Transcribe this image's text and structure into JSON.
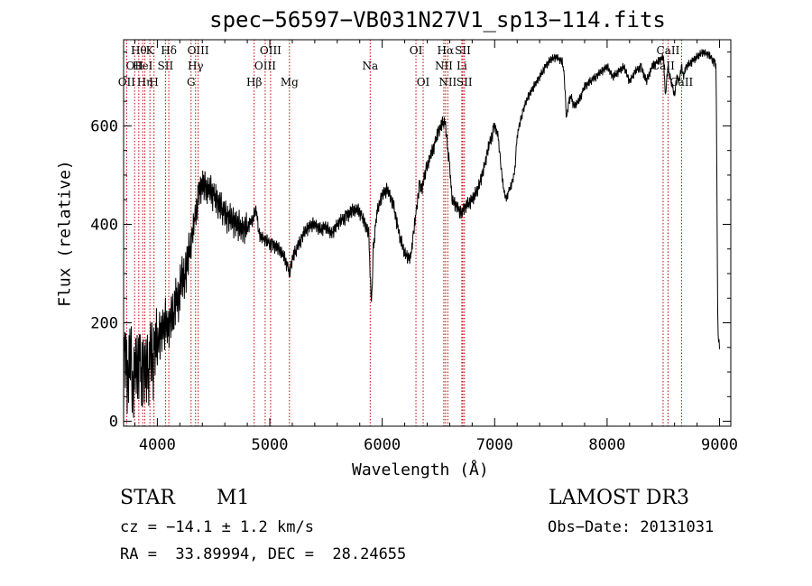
{
  "chart_data": {
    "type": "line",
    "title": "spec−56597−VB031N27V1_sp13−114.fits",
    "xlabel": "Wavelength (Å)",
    "ylabel": "Flux (relative)",
    "xlim": [
      3700,
      9100
    ],
    "ylim": [
      -10,
      775
    ],
    "xticks": [
      4000,
      5000,
      6000,
      7000,
      8000,
      9000
    ],
    "yticks": [
      0,
      200,
      400,
      600
    ],
    "grid": false,
    "line_color": "#000000",
    "marker_color": "#c00000",
    "series": [
      {
        "x": [
          3700,
          3720,
          3740,
          3760,
          3780,
          3800,
          3820,
          3840,
          3860,
          3880,
          3900,
          3920,
          3940,
          3960,
          3980,
          4000,
          4020,
          4040,
          4060,
          4080,
          4100,
          4120,
          4140,
          4160,
          4180,
          4200,
          4220,
          4240,
          4260,
          4280,
          4300,
          4320,
          4340,
          4360,
          4380,
          4400,
          4450,
          4500,
          4550,
          4600,
          4650,
          4700,
          4750,
          4800,
          4850,
          4861,
          4880,
          4900,
          4920,
          4950,
          5000,
          5050,
          5100,
          5150,
          5175,
          5200,
          5250,
          5300,
          5350,
          5400,
          5450,
          5500,
          5550,
          5600,
          5650,
          5700,
          5750,
          5800,
          5850,
          5880,
          5893,
          5905,
          5920,
          5950,
          6000,
          6050,
          6100,
          6150,
          6200,
          6250,
          6300,
          6330,
          6350,
          6400,
          6450,
          6500,
          6550,
          6563,
          6580,
          6600,
          6620,
          6650,
          6680,
          6700,
          6720,
          6750,
          6800,
          6850,
          6900,
          6950,
          7000,
          7030,
          7050,
          7080,
          7100,
          7130,
          7150,
          7180,
          7200,
          7250,
          7300,
          7350,
          7400,
          7450,
          7500,
          7550,
          7600,
          7620,
          7640,
          7660,
          7680,
          7700,
          7750,
          7800,
          7850,
          7900,
          7950,
          8000,
          8050,
          8100,
          8150,
          8200,
          8250,
          8300,
          8350,
          8400,
          8450,
          8500,
          8520,
          8540,
          8560,
          8580,
          8600,
          8620,
          8640,
          8660,
          8680,
          8700,
          8750,
          8800,
          8850,
          8900,
          8950,
          8970,
          8985,
          9000
        ],
        "y": [
          90,
          130,
          70,
          150,
          60,
          110,
          90,
          140,
          80,
          120,
          100,
          95,
          140,
          120,
          160,
          145,
          175,
          180,
          190,
          200,
          185,
          220,
          210,
          250,
          240,
          260,
          300,
          280,
          320,
          340,
          360,
          390,
          420,
          450,
          470,
          480,
          470,
          460,
          440,
          420,
          410,
          400,
          390,
          395,
          410,
          420,
          430,
          385,
          375,
          370,
          360,
          355,
          345,
          320,
          300,
          330,
          355,
          380,
          395,
          400,
          390,
          395,
          380,
          400,
          410,
          420,
          430,
          425,
          400,
          380,
          300,
          230,
          350,
          420,
          460,
          470,
          440,
          380,
          340,
          330,
          420,
          480,
          470,
          520,
          550,
          590,
          610,
          600,
          560,
          520,
          450,
          440,
          430,
          420,
          430,
          440,
          450,
          470,
          510,
          560,
          600,
          580,
          530,
          470,
          450,
          470,
          480,
          510,
          580,
          630,
          660,
          680,
          700,
          720,
          735,
          740,
          730,
          700,
          610,
          650,
          660,
          640,
          650,
          680,
          690,
          700,
          710,
          720,
          700,
          710,
          720,
          690,
          710,
          720,
          690,
          720,
          730,
          740,
          660,
          720,
          700,
          680,
          660,
          700,
          690,
          720,
          700,
          720,
          730,
          740,
          750,
          745,
          730,
          720,
          180,
          150
        ],
        "samples": [
          -14,
          12,
          6,
          11,
          -9,
          8,
          -4,
          10,
          -13,
          7,
          3,
          -8,
          12,
          -5,
          9,
          -11,
          4,
          13,
          -2,
          -10,
          7,
          1,
          -12,
          10,
          -6,
          5,
          -3,
          11,
          -7,
          2,
          14,
          -9,
          0,
          8,
          -14,
          6,
          -1,
          10,
          -4,
          3,
          -8,
          12,
          -11,
          5,
          9,
          -2,
          -13,
          7,
          1,
          -6,
          11,
          -10,
          4,
          13,
          -5,
          2,
          -12,
          8,
          -3,
          6,
          10,
          -9,
          -1,
          12,
          -7,
          3,
          -14,
          9,
          0,
          5,
          -11,
          7,
          -4,
          13,
          -2,
          -8,
          10,
          1,
          -6,
          4,
          12,
          -13,
          6,
          -3,
          9,
          -10,
          2,
          11,
          -5,
          -1,
          8,
          -12,
          3,
          14,
          -7,
          0,
          7,
          -9,
          5,
          -4,
          10,
          -11,
          2,
          6,
          -2,
          -13,
          9,
          3,
          -8,
          12,
          -6,
          1,
          -10,
          8,
          4,
          -14,
          11,
          -3,
          7,
          -5,
          2,
          10,
          -12,
          0,
          6,
          -9,
          13,
          -1,
          -7,
          4,
          9,
          -11,
          5,
          -4,
          12,
          -8,
          3,
          -2,
          10,
          -13,
          1,
          8,
          -6,
          6,
          -10,
          11,
          -3,
          2,
          -5,
          7,
          -12,
          4,
          9,
          0,
          -9,
          13,
          -7,
          5,
          -1,
          10,
          -4,
          -11,
          8,
          3
        ],
        "noise_scale": [
          85,
          55,
          35,
          16,
          10
        ]
      }
    ],
    "lines": [
      {
        "wave": 3727,
        "label": "OII",
        "row": 2
      },
      {
        "wave": 3798,
        "label": "OII",
        "row": 1
      },
      {
        "wave": 3835,
        "label": "Hθ",
        "row": 0
      },
      {
        "wave": 3870,
        "label": "HeI",
        "row": 1
      },
      {
        "wave": 3889,
        "label": "Hη",
        "row": 2
      },
      {
        "wave": 3934,
        "label": "K",
        "row": 0
      },
      {
        "wave": 3970,
        "label": "H",
        "row": 2
      },
      {
        "wave": 4072,
        "label": "SII",
        "row": 1
      },
      {
        "wave": 4102,
        "label": "Hδ",
        "row": 0
      },
      {
        "wave": 4300,
        "label": "G",
        "row": 2
      },
      {
        "wave": 4340,
        "label": "Hγ",
        "row": 1
      },
      {
        "wave": 4363,
        "label": "OIII",
        "row": 0
      },
      {
        "wave": 4861,
        "label": "Hβ",
        "row": 2
      },
      {
        "wave": 4959,
        "label": "OIII",
        "row": 1
      },
      {
        "wave": 5007,
        "label": "OIII",
        "row": 0
      },
      {
        "wave": 5175,
        "label": "Mg",
        "row": 2
      },
      {
        "wave": 5893,
        "label": "Na",
        "row": 1
      },
      {
        "wave": 6300,
        "label": "OI",
        "row": 0
      },
      {
        "wave": 6364,
        "label": "OI",
        "row": 2
      },
      {
        "wave": 6548,
        "label": "NII",
        "row": 1
      },
      {
        "wave": 6563,
        "label": "Hα",
        "row": 0
      },
      {
        "wave": 6583,
        "label": "NII",
        "row": 2
      },
      {
        "wave": 6708,
        "label": "Li",
        "row": 1
      },
      {
        "wave": 6717,
        "label": "SII",
        "row": 0
      },
      {
        "wave": 6731,
        "label": "SII",
        "row": 2
      },
      {
        "wave": 8498,
        "label": "CaII",
        "row": 1
      },
      {
        "wave": 8542,
        "label": "CaII",
        "row": 0
      },
      {
        "wave": 8662,
        "label": "CaII",
        "row": 2
      }
    ]
  },
  "footer": {
    "object_class": "STAR",
    "subclass": "M1",
    "survey": "LAMOST DR3",
    "cz": "cz = −14.1 ± 1.2 km/s",
    "obs_date": "Obs−Date: 20131031",
    "radec": "RA =  33.89994, DEC =  28.24655"
  }
}
